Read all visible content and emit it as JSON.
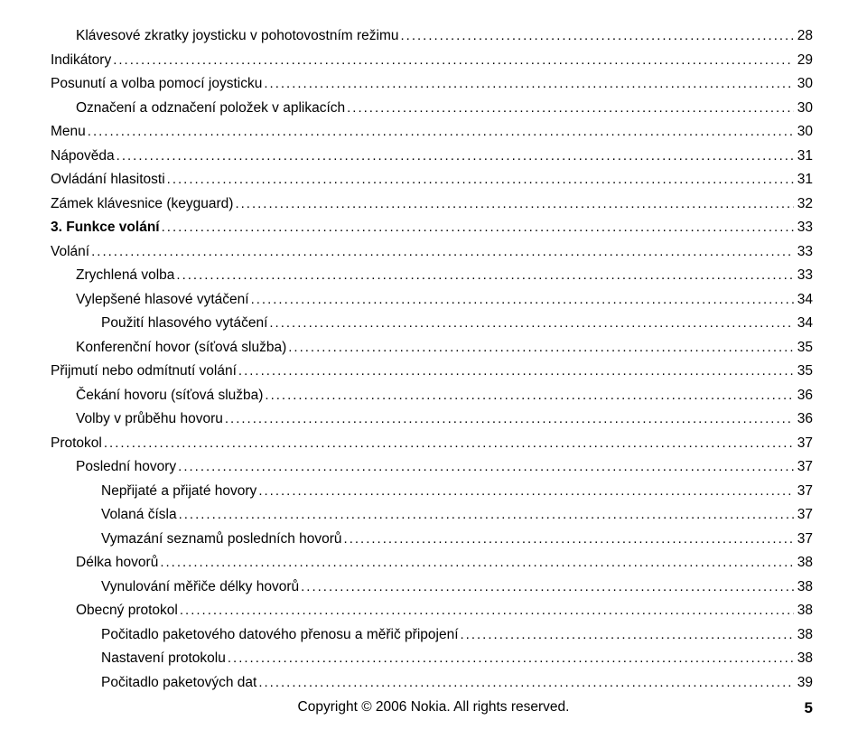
{
  "toc": [
    {
      "indent": 1,
      "label": "Klávesové zkratky joysticku v pohotovostním režimu",
      "page": "28"
    },
    {
      "indent": 0,
      "label": "Indikátory",
      "page": "29"
    },
    {
      "indent": 0,
      "label": "Posunutí a volba pomocí joysticku",
      "page": "30"
    },
    {
      "indent": 1,
      "label": "Označení a odznačení položek v aplikacích",
      "page": "30"
    },
    {
      "indent": 0,
      "label": "Menu",
      "page": "30"
    },
    {
      "indent": 0,
      "label": "Nápověda",
      "page": "31"
    },
    {
      "indent": 0,
      "label": "Ovládání hlasitosti",
      "page": "31"
    },
    {
      "indent": 0,
      "label": "Zámek klávesnice (keyguard)",
      "page": "32"
    },
    {
      "indent": 0,
      "label": "3. Funkce volání",
      "page": "33",
      "section": true
    },
    {
      "indent": 0,
      "label": "Volání",
      "page": "33"
    },
    {
      "indent": 1,
      "label": "Zrychlená volba",
      "page": "33"
    },
    {
      "indent": 1,
      "label": "Vylepšené hlasové vytáčení",
      "page": "34"
    },
    {
      "indent": 2,
      "label": "Použití hlasového vytáčení",
      "page": "34"
    },
    {
      "indent": 1,
      "label": "Konferenční hovor (síťová služba)",
      "page": "35"
    },
    {
      "indent": 0,
      "label": "Přijmutí nebo odmítnutí volání",
      "page": "35"
    },
    {
      "indent": 1,
      "label": "Čekání hovoru (síťová služba)",
      "page": "36"
    },
    {
      "indent": 1,
      "label": "Volby v průběhu hovoru",
      "page": "36"
    },
    {
      "indent": 0,
      "label": "Protokol",
      "page": "37"
    },
    {
      "indent": 1,
      "label": "Poslední hovory",
      "page": "37"
    },
    {
      "indent": 2,
      "label": "Nepřijaté a přijaté hovory",
      "page": "37"
    },
    {
      "indent": 2,
      "label": "Volaná čísla",
      "page": "37"
    },
    {
      "indent": 2,
      "label": "Vymazání seznamů posledních hovorů",
      "page": "37"
    },
    {
      "indent": 1,
      "label": "Délka hovorů",
      "page": "38"
    },
    {
      "indent": 2,
      "label": "Vynulování měřiče délky hovorů",
      "page": "38"
    },
    {
      "indent": 1,
      "label": "Obecný protokol",
      "page": "38"
    },
    {
      "indent": 2,
      "label": "Počitadlo paketového datového přenosu a měřič připojení",
      "page": "38"
    },
    {
      "indent": 2,
      "label": "Nastavení protokolu",
      "page": "38"
    },
    {
      "indent": 2,
      "label": "Počitadlo paketových dat",
      "page": "39"
    }
  ],
  "footer": {
    "copyright": "Copyright © 2006 Nokia. All rights reserved.",
    "pagenum": "5"
  },
  "style": {
    "dot_char": ".",
    "dot_repeat": 200,
    "font_size": 15.5,
    "text_color": "#000000",
    "background_color": "#ffffff"
  }
}
